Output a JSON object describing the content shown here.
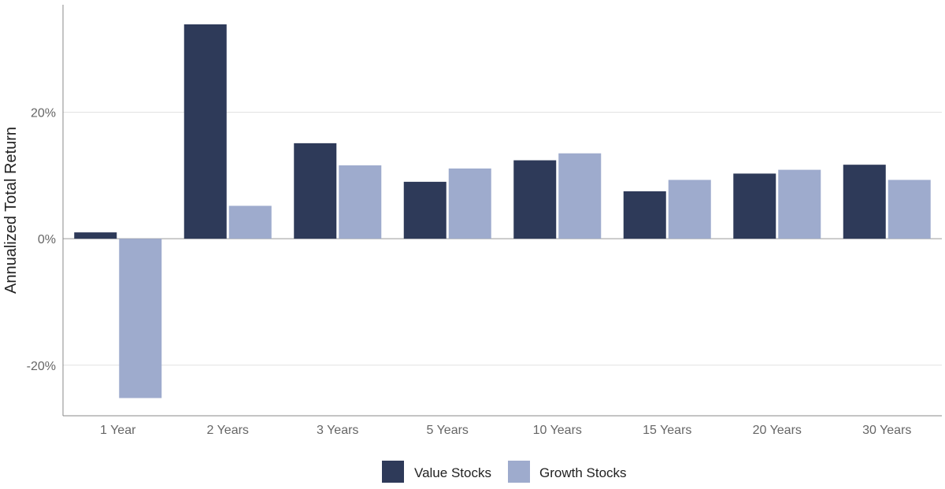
{
  "chart_data": {
    "type": "bar",
    "title": "",
    "xlabel": "",
    "ylabel": "Annualized Total Return",
    "categories": [
      "1 Year",
      "2 Years",
      "3 Years",
      "5 Years",
      "10 Years",
      "15 Years",
      "20 Years",
      "30 Years"
    ],
    "series": [
      {
        "name": "Value Stocks",
        "color": "#2e3a59",
        "values": [
          1.0,
          33.9,
          15.1,
          9.0,
          12.4,
          7.5,
          10.3,
          11.7
        ]
      },
      {
        "name": "Growth Stocks",
        "color": "#9eabcd",
        "values": [
          -25.2,
          5.2,
          11.6,
          11.1,
          13.5,
          9.3,
          10.9,
          9.3
        ]
      }
    ],
    "ylim": [
      -28,
      37
    ],
    "yticks": [
      -20,
      0,
      20
    ],
    "ytick_labels": [
      "-20%",
      "0%",
      "20%"
    ],
    "grid": "horizontal",
    "legend": "bottom-center"
  }
}
